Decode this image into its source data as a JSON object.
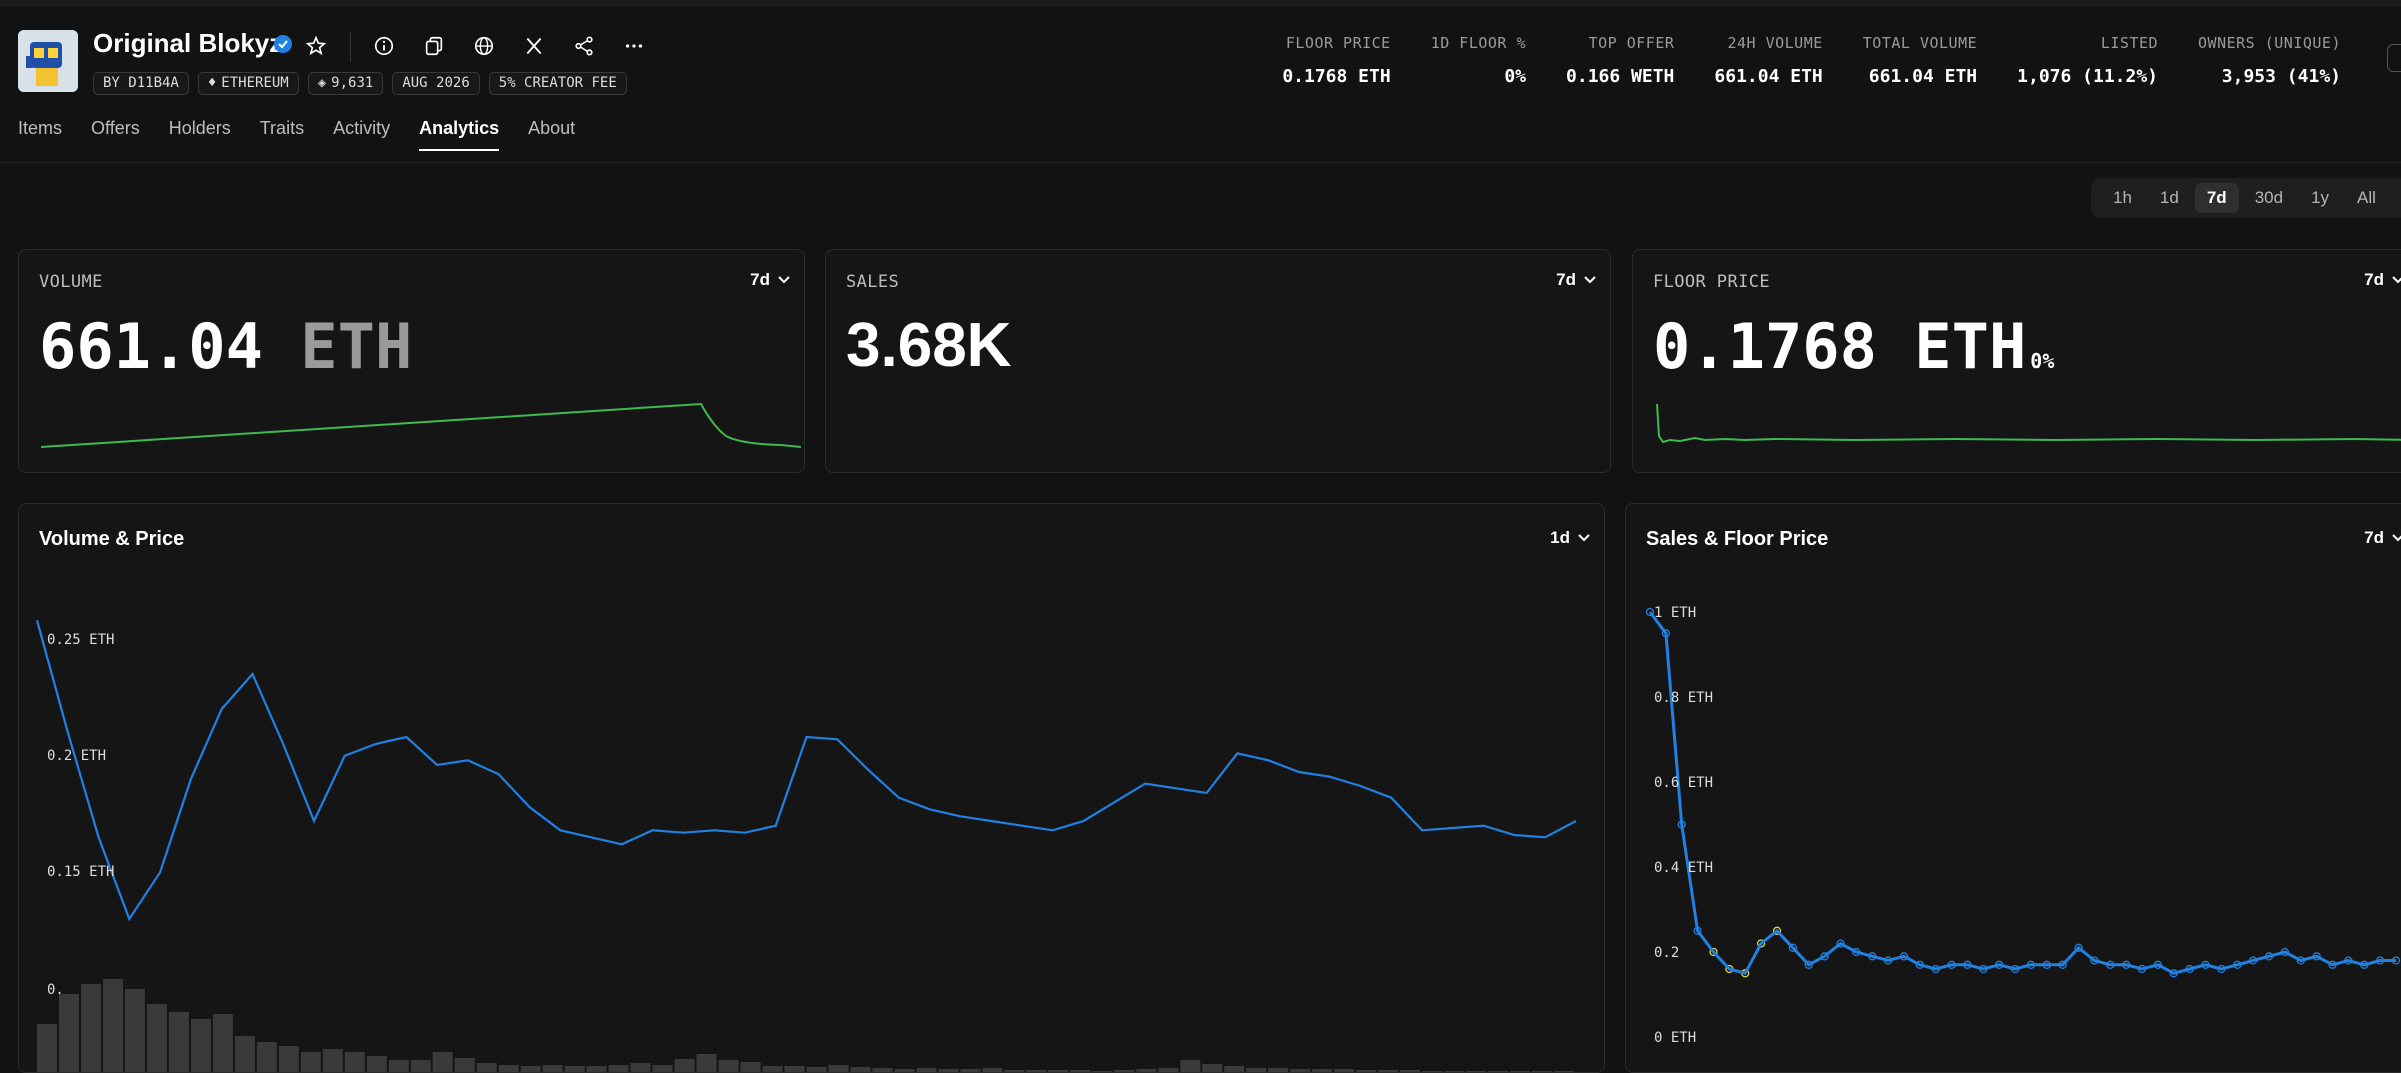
{
  "collection": {
    "name": "Original Blokyz",
    "chips": {
      "creator": "BY D11B4A",
      "chain": "ETHEREUM",
      "items": "9,631",
      "date": "AUG 2026",
      "fee": "5% CREATOR FEE"
    }
  },
  "header_icons": [
    "star-icon",
    "info-icon",
    "copy-icon",
    "globe-icon",
    "x-logo-icon",
    "share-icon",
    "more-icon"
  ],
  "stats": [
    {
      "label": "FLOOR PRICE",
      "value": "0.1768 ETH"
    },
    {
      "label": "1D FLOOR %",
      "value": "0%"
    },
    {
      "label": "TOP OFFER",
      "value": "0.166 WETH"
    },
    {
      "label": "24H VOLUME",
      "value": "661.04 ETH"
    },
    {
      "label": "TOTAL VOLUME",
      "value": "661.04 ETH"
    },
    {
      "label": "LISTED",
      "value": "1,076 (11.2%)"
    },
    {
      "label": "OWNERS (UNIQUE)",
      "value": "3,953 (41%)"
    }
  ],
  "tabs": [
    "Items",
    "Offers",
    "Holders",
    "Traits",
    "Activity",
    "Analytics",
    "About"
  ],
  "active_tab": "Analytics",
  "time_ranges": [
    "1h",
    "1d",
    "7d",
    "30d",
    "1y",
    "All"
  ],
  "active_range": "7d",
  "cards": {
    "volume": {
      "label": "VOLUME",
      "period": "7d",
      "value": "661.04",
      "unit": "ETH"
    },
    "sales": {
      "label": "SALES",
      "period": "7d",
      "value": "3.68K"
    },
    "floor": {
      "label": "FLOOR PRICE",
      "period": "7d",
      "value": "0.1768",
      "unit": "ETH",
      "change": "0%"
    }
  },
  "panels": {
    "volume_price": {
      "title": "Volume & Price",
      "period": "1d"
    },
    "sales_floor": {
      "title": "Sales & Floor Price",
      "period": "7d"
    }
  },
  "colors": {
    "accent_blue": "#2081e2",
    "accent_green": "#3fb950",
    "background": "#121212",
    "bar_gray": "#3a3a3a"
  },
  "chart_data": [
    {
      "type": "line",
      "title": "Volume & Price",
      "series": [
        {
          "values": [
            0.258,
            0.21,
            0.165,
            0.13,
            0.15,
            0.19,
            0.22,
            0.235,
            0.205,
            0.172,
            0.2,
            0.205,
            0.208,
            0.196,
            0.198,
            0.192,
            0.178,
            0.168,
            0.165,
            0.162,
            0.168,
            0.167,
            0.168,
            0.167,
            0.17,
            0.208,
            0.207,
            0.194,
            0.182,
            0.177,
            0.174,
            0.172,
            0.17,
            0.168,
            0.172,
            0.18,
            0.188,
            0.186,
            0.184,
            0.201,
            0.198,
            0.193,
            0.191,
            0.187,
            0.182,
            0.168,
            0.169,
            0.17,
            0.166,
            0.165,
            0.172
          ]
        }
      ],
      "bars": [
        0.05,
        0.08,
        0.09,
        0.095,
        0.085,
        0.07,
        0.062,
        0.055,
        0.06,
        0.038,
        0.032,
        0.028,
        0.022,
        0.025,
        0.022,
        0.018,
        0.014,
        0.014,
        0.022,
        0.016,
        0.011,
        0.009,
        0.008,
        0.009,
        0.008,
        0.008,
        0.009,
        0.011,
        0.009,
        0.015,
        0.02,
        0.014,
        0.012,
        0.008,
        0.008,
        0.007,
        0.009,
        0.007,
        0.006,
        0.005,
        0.006,
        0.005,
        0.005,
        0.006,
        0.004,
        0.004,
        0.004,
        0.004,
        0.003,
        0.004,
        0.005,
        0.006,
        0.014,
        0.01,
        0.008,
        0.006,
        0.006,
        0.005,
        0.005,
        0.005,
        0.004,
        0.004,
        0.004,
        0.003,
        0.003,
        0.003,
        0.003,
        0.003,
        0.003,
        0.003
      ],
      "ytick_labels": [
        "0.25 ETH",
        "0.2 ETH",
        "0.15 ETH",
        "0."
      ],
      "ylim": [
        0.1,
        0.25
      ]
    },
    {
      "type": "scatter",
      "title": "Sales & Floor Price",
      "series": [
        {
          "values": [
            1.0,
            0.95,
            0.5,
            0.25,
            0.2,
            0.16,
            0.15,
            0.22,
            0.25,
            0.21,
            0.17,
            0.19,
            0.22,
            0.2,
            0.19,
            0.18,
            0.19,
            0.17,
            0.16,
            0.17,
            0.17,
            0.16,
            0.17,
            0.16,
            0.17,
            0.17,
            0.17,
            0.21,
            0.18,
            0.17,
            0.17,
            0.16,
            0.17,
            0.15,
            0.16,
            0.17,
            0.16,
            0.17,
            0.18,
            0.19,
            0.2,
            0.18,
            0.19,
            0.17,
            0.18,
            0.17,
            0.18,
            0.18
          ]
        }
      ],
      "ytick_labels": [
        "1 ETH",
        "0.8 ETH",
        "0.6 ETH",
        "0.4 ETH",
        "0.2",
        "0 ETH"
      ],
      "ylim": [
        0,
        1
      ]
    }
  ]
}
